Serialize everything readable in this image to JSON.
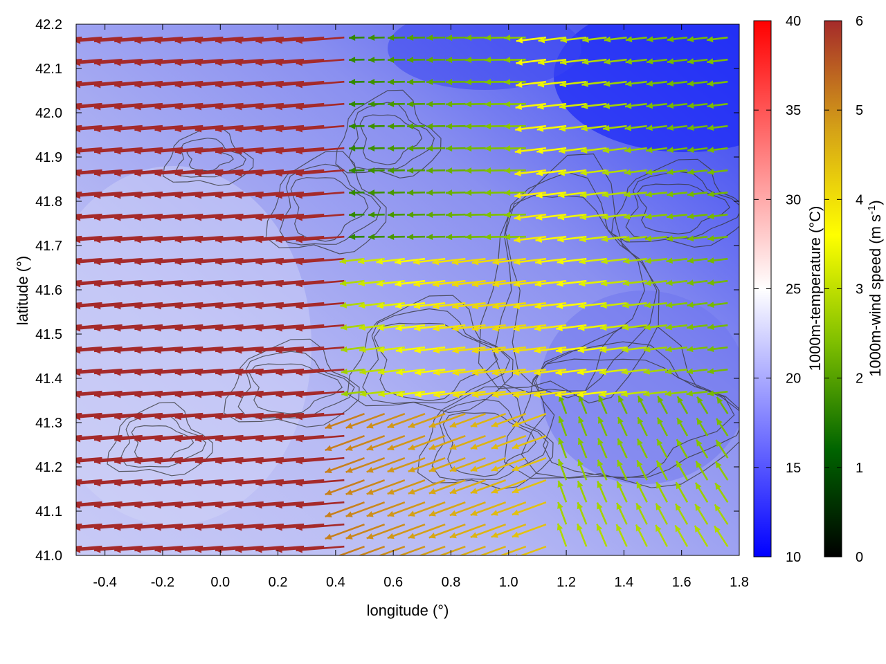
{
  "chart_data": {
    "type": "vector-field-heatmap",
    "xlabel": "longitude (°)",
    "ylabel": "latitude (°)",
    "xlim": [
      -0.5,
      1.8
    ],
    "ylim": [
      41.0,
      42.2
    ],
    "x_ticks": [
      "-0.4",
      "-0.2",
      "0.0",
      "0.2",
      "0.4",
      "0.6",
      "0.8",
      "1.0",
      "1.2",
      "1.4",
      "1.6",
      "1.8"
    ],
    "x_tick_values": [
      -0.4,
      -0.2,
      0.0,
      0.2,
      0.4,
      0.6,
      0.8,
      1.0,
      1.2,
      1.4,
      1.6,
      1.8
    ],
    "y_ticks": [
      "41.0",
      "41.1",
      "41.2",
      "41.3",
      "41.4",
      "41.5",
      "41.6",
      "41.7",
      "41.8",
      "41.9",
      "42.0",
      "42.1",
      "42.2"
    ],
    "y_tick_values": [
      41.0,
      41.1,
      41.2,
      41.3,
      41.4,
      41.5,
      41.6,
      41.7,
      41.8,
      41.9,
      42.0,
      42.1,
      42.2
    ],
    "temperature_colorbar": {
      "label": "1000m-temperature (°C)",
      "range": [
        10,
        40
      ],
      "ticks": [
        "10",
        "15",
        "20",
        "25",
        "30",
        "35",
        "40"
      ],
      "tick_values": [
        10,
        15,
        20,
        25,
        30,
        35,
        40
      ],
      "colors": [
        "#0000ff",
        "#ffffff",
        "#ff0000"
      ]
    },
    "wind_colorbar": {
      "label_main": "1000m-wind speed (m s",
      "label_sup": "-1",
      "label_end": ")",
      "range": [
        0,
        6
      ],
      "ticks": [
        "0",
        "1",
        "2",
        "3",
        "4",
        "5",
        "6"
      ],
      "tick_values": [
        0,
        1,
        2,
        3,
        4,
        5,
        6
      ],
      "colors": [
        "#000000",
        "#006400",
        "#7fbf00",
        "#ffff00",
        "#d4a017",
        "#a52a2a"
      ]
    },
    "wind_field_regions": [
      {
        "region": "west (lon < 0.4)",
        "direction": "from east (westward flow)",
        "speed_ms": 6
      },
      {
        "region": "north-central (lon 0.5-1.1, lat 41.7-42.2)",
        "direction": "westward",
        "speed_ms": 1.5
      },
      {
        "region": "east (lon 1.1-1.8, lat 41.4-41.9)",
        "direction": "westward",
        "speed_ms": 3.5
      },
      {
        "region": "southeast (lon 1.2-1.8, lat 41.0-41.3)",
        "direction": "from south-east (north/north-west flow)",
        "speed_ms": 2.5
      }
    ],
    "temperature_field": {
      "min_c": 14,
      "max_c": 21,
      "note_colder": "northeast",
      "note_warmer": "southwest"
    }
  }
}
